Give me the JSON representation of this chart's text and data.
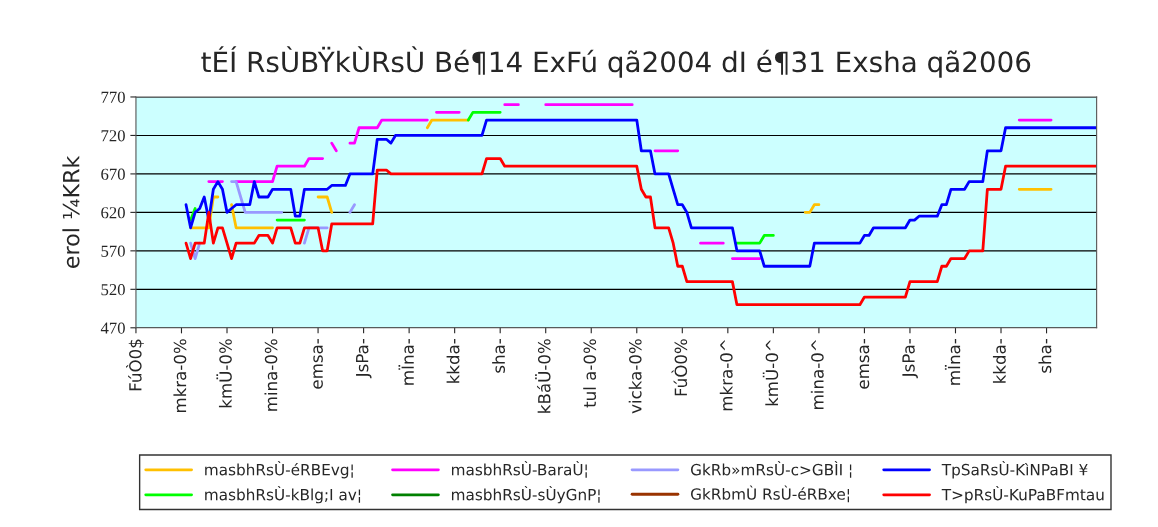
{
  "chart_data": {
    "type": "line",
    "title": "tÉÍ RsÙBŸkÙRsÙ Bé¶14 ExFú qã2004 dI é¶31 Exsha qã2006",
    "ylabel": "erol ¼KRk",
    "categories": [
      "FúÒ0$",
      null,
      null,
      null,
      null,
      null,
      null,
      null,
      null,
      null,
      "mkra-0%",
      null,
      null,
      null,
      null,
      null,
      null,
      null,
      null,
      null,
      "kmÜ-0%",
      null,
      null,
      null,
      null,
      null,
      null,
      null,
      null,
      null,
      "mina-0%",
      null,
      null,
      null,
      null,
      null,
      null,
      null,
      null,
      null,
      "emsa-",
      null,
      null,
      null,
      null,
      null,
      null,
      null,
      null,
      null,
      "JsPa-",
      null,
      null,
      null,
      null,
      null,
      null,
      null,
      null,
      null,
      "mÏna-",
      null,
      null,
      null,
      null,
      null,
      null,
      null,
      null,
      null,
      "kkda-",
      null,
      null,
      null,
      null,
      null,
      null,
      null,
      null,
      null,
      "sha-",
      null,
      null,
      null,
      null,
      null,
      null,
      null,
      null,
      null,
      "kBáÜ-0%",
      null,
      null,
      null,
      null,
      null,
      null,
      null,
      null,
      null,
      "tul a-0%",
      null,
      null,
      null,
      null,
      null,
      null,
      null,
      null,
      null,
      "vicka-0%",
      null,
      null,
      null,
      null,
      null,
      null,
      null,
      null,
      null,
      "FúÒ0%",
      null,
      null,
      null,
      null,
      null,
      null,
      null,
      null,
      null,
      "mkra-0^",
      null,
      null,
      null,
      null,
      null,
      null,
      null,
      null,
      null,
      "kmÜ-0^",
      null,
      null,
      null,
      null,
      null,
      null,
      null,
      null,
      null,
      "mina-0^",
      null,
      null,
      null,
      null,
      null,
      null,
      null,
      null,
      null,
      "emsa-",
      null,
      null,
      null,
      null,
      null,
      null,
      null,
      null,
      null,
      "JsPa-",
      null,
      null,
      null,
      null,
      null,
      null,
      null,
      null,
      null,
      "mÏna-",
      null,
      null,
      null,
      null,
      null,
      null,
      null,
      null,
      null,
      "kkda-",
      null,
      null,
      null,
      null,
      null,
      null,
      null,
      null,
      null,
      "sha-",
      null,
      null,
      null,
      null,
      null,
      null,
      null,
      null,
      null,
      null,
      null
    ],
    "ylim": [
      470,
      770
    ],
    "yticks": [
      470,
      520,
      570,
      620,
      670,
      720,
      770
    ],
    "grid": "y",
    "legend": "bottom",
    "series": [
      {
        "name": "masbhRsÙ-éRBEvg¦",
        "color": "#ffc000",
        "values": [
          null,
          null,
          null,
          null,
          null,
          null,
          null,
          null,
          null,
          null,
          null,
          null,
          600,
          600,
          600,
          600,
          600,
          640,
          640,
          null,
          null,
          630,
          600,
          600,
          600,
          600,
          600,
          600,
          600,
          600,
          600,
          null,
          null,
          null,
          null,
          null,
          null,
          null,
          null,
          null,
          640,
          640,
          640,
          620,
          null,
          null,
          null,
          null,
          null,
          null,
          null,
          null,
          null,
          null,
          null,
          null,
          null,
          null,
          null,
          null,
          null,
          null,
          null,
          null,
          730,
          740,
          740,
          740,
          740,
          740,
          740,
          740,
          740,
          740,
          null,
          null,
          null,
          null,
          null,
          null,
          null,
          null,
          null,
          null,
          null,
          null,
          null,
          null,
          null,
          null,
          null,
          null,
          null,
          null,
          null,
          null,
          null,
          null,
          null,
          null,
          null,
          null,
          null,
          null,
          null,
          null,
          null,
          null,
          null,
          null,
          null,
          null,
          null,
          null,
          null,
          null,
          null,
          null,
          null,
          null,
          null,
          null,
          null,
          null,
          null,
          null,
          null,
          null,
          null,
          null,
          null,
          null,
          null,
          null,
          null,
          null,
          null,
          null,
          null,
          null,
          null,
          null,
          null,
          null,
          null,
          null,
          null,
          620,
          620,
          630,
          630,
          null,
          null,
          null,
          null,
          null,
          null,
          null,
          null,
          null,
          null,
          null,
          null,
          null,
          null,
          null,
          null,
          null,
          null,
          null,
          null,
          null,
          null,
          null,
          null,
          null,
          null,
          null,
          null,
          null,
          null,
          null,
          null,
          null,
          null,
          null,
          null,
          null,
          null,
          null,
          null,
          null,
          null,
          null,
          650,
          650,
          650,
          650,
          650,
          650,
          650,
          650,
          null,
          null,
          null,
          null,
          null,
          null,
          null,
          null,
          null,
          null
        ]
      },
      {
        "name": "masbhRsÙ-kBlg;I av¦",
        "color": "#00ff00",
        "values": [
          null,
          null,
          null,
          null,
          null,
          null,
          null,
          null,
          null,
          null,
          null,
          null,
          610,
          625,
          null,
          null,
          null,
          null,
          null,
          null,
          null,
          null,
          null,
          null,
          null,
          null,
          null,
          null,
          null,
          null,
          null,
          610,
          610,
          610,
          610,
          610,
          610,
          610,
          null,
          null,
          null,
          null,
          null,
          null,
          null,
          null,
          null,
          null,
          null,
          null,
          null,
          null,
          null,
          null,
          null,
          null,
          null,
          null,
          null,
          null,
          null,
          null,
          null,
          null,
          null,
          null,
          null,
          null,
          null,
          null,
          null,
          null,
          null,
          740,
          750,
          750,
          750,
          750,
          750,
          750,
          750,
          null,
          null,
          null,
          null,
          null,
          null,
          null,
          null,
          null,
          null,
          null,
          null,
          null,
          null,
          null,
          null,
          null,
          null,
          null,
          null,
          null,
          null,
          null,
          null,
          null,
          null,
          null,
          null,
          null,
          null,
          null,
          null,
          null,
          null,
          null,
          null,
          null,
          null,
          null,
          null,
          null,
          null,
          null,
          null,
          null,
          null,
          null,
          null,
          null,
          null,
          null,
          580,
          580,
          580,
          580,
          580,
          580,
          590,
          590,
          590,
          null,
          null,
          null,
          null,
          null,
          null,
          null,
          null,
          null,
          null,
          null,
          null,
          null,
          null,
          null,
          null,
          null,
          null,
          null,
          null,
          null,
          null,
          null,
          null,
          null,
          null,
          null,
          null,
          null,
          null,
          null,
          null,
          null,
          null,
          null,
          null,
          null,
          null,
          null,
          null,
          null,
          null,
          null,
          null,
          null,
          null,
          null,
          null,
          null,
          null,
          null,
          null,
          null,
          null,
          null,
          null,
          null,
          null,
          null,
          null,
          null,
          null,
          null,
          null,
          null,
          null,
          null,
          null,
          null,
          null,
          null
        ]
      },
      {
        "name": "masbhRsÙ-BaraÙ¦",
        "color": "#ff00ff",
        "values": [
          null,
          null,
          null,
          null,
          null,
          null,
          null,
          null,
          null,
          null,
          null,
          null,
          null,
          null,
          null,
          null,
          660,
          660,
          660,
          660,
          null,
          null,
          660,
          660,
          660,
          660,
          660,
          660,
          660,
          660,
          660,
          680,
          680,
          680,
          680,
          680,
          680,
          680,
          690,
          690,
          690,
          690,
          null,
          710,
          700,
          null,
          null,
          710,
          710,
          730,
          730,
          730,
          730,
          730,
          740,
          740,
          740,
          740,
          740,
          740,
          740,
          740,
          740,
          740,
          740,
          null,
          750,
          750,
          750,
          750,
          750,
          750,
          null,
          null,
          null,
          null,
          null,
          null,
          null,
          null,
          null,
          760,
          760,
          760,
          760,
          null,
          null,
          null,
          null,
          null,
          760,
          760,
          760,
          760,
          760,
          760,
          760,
          760,
          760,
          760,
          760,
          760,
          760,
          760,
          760,
          760,
          760,
          760,
          760,
          760,
          null,
          null,
          null,
          null,
          700,
          700,
          700,
          700,
          700,
          700,
          null,
          null,
          null,
          null,
          580,
          580,
          580,
          580,
          580,
          580,
          null,
          560,
          560,
          560,
          560,
          560,
          560,
          560,
          null,
          null,
          null,
          null,
          null,
          null,
          null,
          null,
          null,
          null,
          null,
          null,
          null,
          null,
          null,
          null,
          null,
          null,
          null,
          null,
          null,
          null,
          null,
          null,
          null,
          null,
          null,
          null,
          null,
          null,
          null,
          null,
          null,
          null,
          null,
          null,
          null,
          null,
          null,
          null,
          null,
          null,
          null,
          null,
          null,
          null,
          null,
          null,
          null,
          null,
          null,
          null,
          null,
          null,
          null,
          null,
          740,
          740,
          740,
          740,
          740,
          740,
          740,
          740,
          null,
          null,
          null,
          null,
          null,
          null,
          null,
          null,
          null,
          null
        ]
      },
      {
        "name": "masbhRsÙ-sÙyGnP¦",
        "color": "#008000",
        "values": [
          null,
          null,
          null,
          null,
          null,
          null,
          null,
          null,
          null,
          null,
          null,
          null,
          null,
          null,
          null,
          null,
          null,
          null,
          null,
          null,
          null,
          null,
          null,
          null,
          null,
          null,
          null,
          null,
          null,
          null,
          null,
          null,
          null,
          null,
          null,
          null,
          null,
          null,
          null,
          null,
          null,
          null,
          null,
          null,
          null,
          null,
          null,
          null,
          null,
          null,
          null,
          null,
          null,
          null,
          null,
          null,
          null,
          null,
          null,
          null,
          null,
          null,
          null,
          null,
          null,
          null,
          null,
          null,
          null,
          null,
          null,
          null,
          null,
          null,
          null,
          null,
          null,
          null,
          null,
          null,
          null,
          null,
          null,
          null,
          null,
          null,
          null,
          null,
          null,
          null,
          null,
          null,
          null,
          null,
          null,
          null,
          null,
          null,
          null,
          null,
          null,
          null,
          null,
          null,
          null,
          null,
          null,
          null,
          null,
          null,
          null,
          null,
          null,
          null,
          null,
          null,
          null,
          null,
          null,
          null,
          null,
          null,
          null,
          null,
          null,
          null,
          null,
          null,
          null,
          null,
          null,
          null,
          null,
          null,
          null,
          null,
          null,
          null,
          null,
          null,
          null,
          null,
          null,
          null,
          null,
          null,
          null,
          null,
          null,
          null,
          null,
          null,
          null,
          null,
          null,
          null,
          null,
          null,
          null,
          null,
          null,
          null,
          null,
          null,
          null,
          null,
          null,
          null,
          null,
          null,
          null,
          null,
          null,
          null,
          null,
          null,
          null,
          null,
          null,
          null,
          null,
          null,
          null,
          null,
          null,
          null,
          null,
          null,
          null,
          null,
          null,
          null,
          null,
          null,
          null,
          null,
          null,
          null,
          null,
          null,
          null,
          null,
          null,
          null,
          null,
          null,
          null,
          null,
          null,
          null,
          null,
          null
        ]
      },
      {
        "name": "GkRb»mRsÙ-c>GBÌI ¦",
        "color": "#9999ff",
        "values": [
          null,
          null,
          null,
          null,
          null,
          null,
          null,
          null,
          null,
          null,
          null,
          null,
          580,
          560,
          580,
          null,
          null,
          null,
          null,
          null,
          null,
          660,
          660,
          640,
          620,
          620,
          620,
          620,
          620,
          620,
          620,
          620,
          620,
          null,
          null,
          null,
          null,
          580,
          600,
          600,
          600,
          600,
          600,
          null,
          null,
          null,
          null,
          620,
          630,
          null,
          null,
          null,
          null,
          null,
          null,
          null,
          null,
          null,
          null,
          null,
          null,
          null,
          null,
          null,
          null,
          null,
          null,
          null,
          null,
          null,
          null,
          null,
          null,
          null,
          null,
          null,
          null,
          null,
          null,
          null,
          null,
          null,
          null,
          null,
          null,
          null,
          null,
          null,
          null,
          null,
          null,
          null,
          null,
          null,
          null,
          null,
          null,
          null,
          null,
          null,
          null,
          null,
          null,
          null,
          null,
          null,
          null,
          null,
          null,
          null,
          null,
          null,
          null,
          null,
          null,
          null,
          null,
          null,
          null,
          null,
          null,
          null,
          null,
          null,
          null,
          null,
          null,
          null,
          null,
          null,
          null,
          null,
          null,
          null,
          null,
          null,
          null,
          null,
          null,
          null,
          null,
          null,
          null,
          null,
          null,
          null,
          null,
          null,
          null,
          null,
          null,
          null,
          null,
          null,
          null,
          null,
          null,
          null,
          null,
          null,
          null,
          null,
          null,
          null,
          null,
          null,
          null,
          null,
          null,
          null,
          null,
          null,
          null,
          null,
          null,
          null,
          null,
          null,
          null,
          null,
          null,
          null,
          null,
          null,
          null,
          null,
          null,
          null,
          null,
          null,
          null,
          null,
          null,
          null,
          null,
          null,
          null,
          null,
          null,
          null,
          null,
          null,
          null,
          null,
          null,
          null,
          null,
          null,
          null,
          null,
          null,
          null
        ]
      },
      {
        "name": "GkRbmÙ RsÙ-éRBxe¦",
        "color": "#993300",
        "values": [
          null,
          null,
          null,
          null,
          null,
          null,
          null,
          null,
          null,
          null,
          null,
          null,
          null,
          null,
          null,
          null,
          null,
          null,
          null,
          null,
          null,
          null,
          null,
          null,
          null,
          null,
          null,
          null,
          null,
          null,
          null,
          null,
          null,
          null,
          null,
          null,
          null,
          null,
          null,
          null,
          null,
          null,
          null,
          null,
          null,
          null,
          null,
          null,
          null,
          null,
          null,
          null,
          null,
          null,
          null,
          null,
          null,
          null,
          null,
          null,
          null,
          null,
          null,
          null,
          null,
          null,
          null,
          null,
          null,
          null,
          null,
          null,
          null,
          null,
          null,
          null,
          null,
          null,
          null,
          null,
          null,
          null,
          null,
          null,
          null,
          null,
          null,
          null,
          null,
          null,
          null,
          null,
          null,
          null,
          null,
          null,
          null,
          null,
          null,
          null,
          null,
          null,
          null,
          null,
          null,
          null,
          null,
          null,
          null,
          null,
          null,
          null,
          null,
          null,
          null,
          null,
          null,
          null,
          null,
          null,
          null,
          null,
          null,
          null,
          null,
          null,
          null,
          null,
          null,
          null,
          null,
          null,
          null,
          null,
          null,
          null,
          null,
          null,
          null,
          null,
          null,
          null,
          null,
          null,
          null,
          null,
          null,
          null,
          null,
          null,
          null,
          null,
          null,
          null,
          null,
          null,
          null,
          null,
          null,
          null,
          null,
          null,
          null,
          null,
          null,
          null,
          null,
          null,
          null,
          null,
          null,
          null,
          null,
          null,
          null,
          null,
          null,
          null,
          null,
          null,
          null,
          null,
          null,
          null,
          null,
          null,
          null,
          null,
          null,
          null,
          null,
          null,
          null,
          null,
          null,
          null,
          null,
          null,
          null,
          null,
          null,
          null,
          null,
          null,
          null,
          null,
          null,
          null,
          null,
          null,
          null,
          null
        ]
      },
      {
        "name": "TpSaRsÙ-KìNPaBI ¥",
        "color": "#0000ff",
        "values": [
          null,
          null,
          null,
          null,
          null,
          null,
          null,
          null,
          null,
          null,
          null,
          630,
          600,
          620,
          625,
          640,
          610,
          650,
          660,
          650,
          620,
          625,
          630,
          630,
          630,
          630,
          660,
          640,
          640,
          640,
          650,
          650,
          650,
          650,
          650,
          615,
          615,
          650,
          650,
          650,
          650,
          650,
          650,
          655,
          655,
          655,
          655,
          670,
          670,
          670,
          670,
          670,
          670,
          715,
          715,
          715,
          710,
          720,
          720,
          720,
          720,
          720,
          720,
          720,
          720,
          720,
          720,
          720,
          720,
          720,
          720,
          720,
          720,
          720,
          720,
          720,
          720,
          740,
          740,
          740,
          740,
          740,
          740,
          740,
          740,
          740,
          740,
          740,
          740,
          740,
          740,
          740,
          740,
          740,
          740,
          740,
          740,
          740,
          740,
          740,
          740,
          740,
          740,
          740,
          740,
          740,
          740,
          740,
          740,
          740,
          740,
          700,
          700,
          700,
          670,
          670,
          670,
          670,
          650,
          630,
          630,
          620,
          600,
          600,
          600,
          600,
          600,
          600,
          600,
          600,
          600,
          600,
          570,
          570,
          570,
          570,
          570,
          570,
          550,
          550,
          550,
          550,
          550,
          550,
          550,
          550,
          550,
          550,
          550,
          580,
          580,
          580,
          580,
          580,
          580,
          580,
          580,
          580,
          580,
          580,
          590,
          590,
          600,
          600,
          600,
          600,
          600,
          600,
          600,
          600,
          610,
          610,
          615,
          615,
          615,
          615,
          615,
          630,
          630,
          650,
          650,
          650,
          650,
          660,
          660,
          660,
          660,
          700,
          700,
          700,
          700,
          730,
          730,
          730,
          730,
          730,
          730,
          730,
          730,
          730,
          730,
          730,
          730,
          730,
          730,
          730,
          730,
          730,
          730,
          730,
          730,
          730
        ]
      },
      {
        "name": "T>pRsÙ-KuPaBFmtau",
        "color": "#ff0000",
        "values": [
          null,
          null,
          null,
          null,
          null,
          null,
          null,
          null,
          null,
          null,
          null,
          580,
          560,
          580,
          580,
          580,
          620,
          580,
          600,
          600,
          580,
          560,
          580,
          580,
          580,
          580,
          580,
          590,
          590,
          590,
          580,
          600,
          600,
          600,
          600,
          580,
          580,
          600,
          600,
          600,
          600,
          570,
          570,
          605,
          605,
          605,
          605,
          605,
          605,
          605,
          605,
          605,
          605,
          675,
          675,
          675,
          670,
          670,
          670,
          670,
          670,
          670,
          670,
          670,
          670,
          670,
          670,
          670,
          670,
          670,
          670,
          670,
          670,
          670,
          670,
          670,
          670,
          690,
          690,
          690,
          690,
          680,
          680,
          680,
          680,
          680,
          680,
          680,
          680,
          680,
          680,
          680,
          680,
          680,
          680,
          680,
          680,
          680,
          680,
          680,
          680,
          680,
          680,
          680,
          680,
          680,
          680,
          680,
          680,
          680,
          680,
          650,
          640,
          640,
          600,
          600,
          600,
          600,
          580,
          550,
          550,
          530,
          530,
          530,
          530,
          530,
          530,
          530,
          530,
          530,
          530,
          530,
          500,
          500,
          500,
          500,
          500,
          500,
          500,
          500,
          500,
          500,
          500,
          500,
          500,
          500,
          500,
          500,
          500,
          500,
          500,
          500,
          500,
          500,
          500,
          500,
          500,
          500,
          500,
          500,
          510,
          510,
          510,
          510,
          510,
          510,
          510,
          510,
          510,
          510,
          530,
          530,
          530,
          530,
          530,
          530,
          530,
          550,
          550,
          560,
          560,
          560,
          560,
          570,
          570,
          570,
          570,
          650,
          650,
          650,
          650,
          680,
          680,
          680,
          680,
          680,
          680,
          680,
          680,
          680,
          680,
          680,
          680,
          680,
          680,
          680,
          680,
          680,
          680,
          680,
          680,
          680
        ]
      }
    ]
  }
}
